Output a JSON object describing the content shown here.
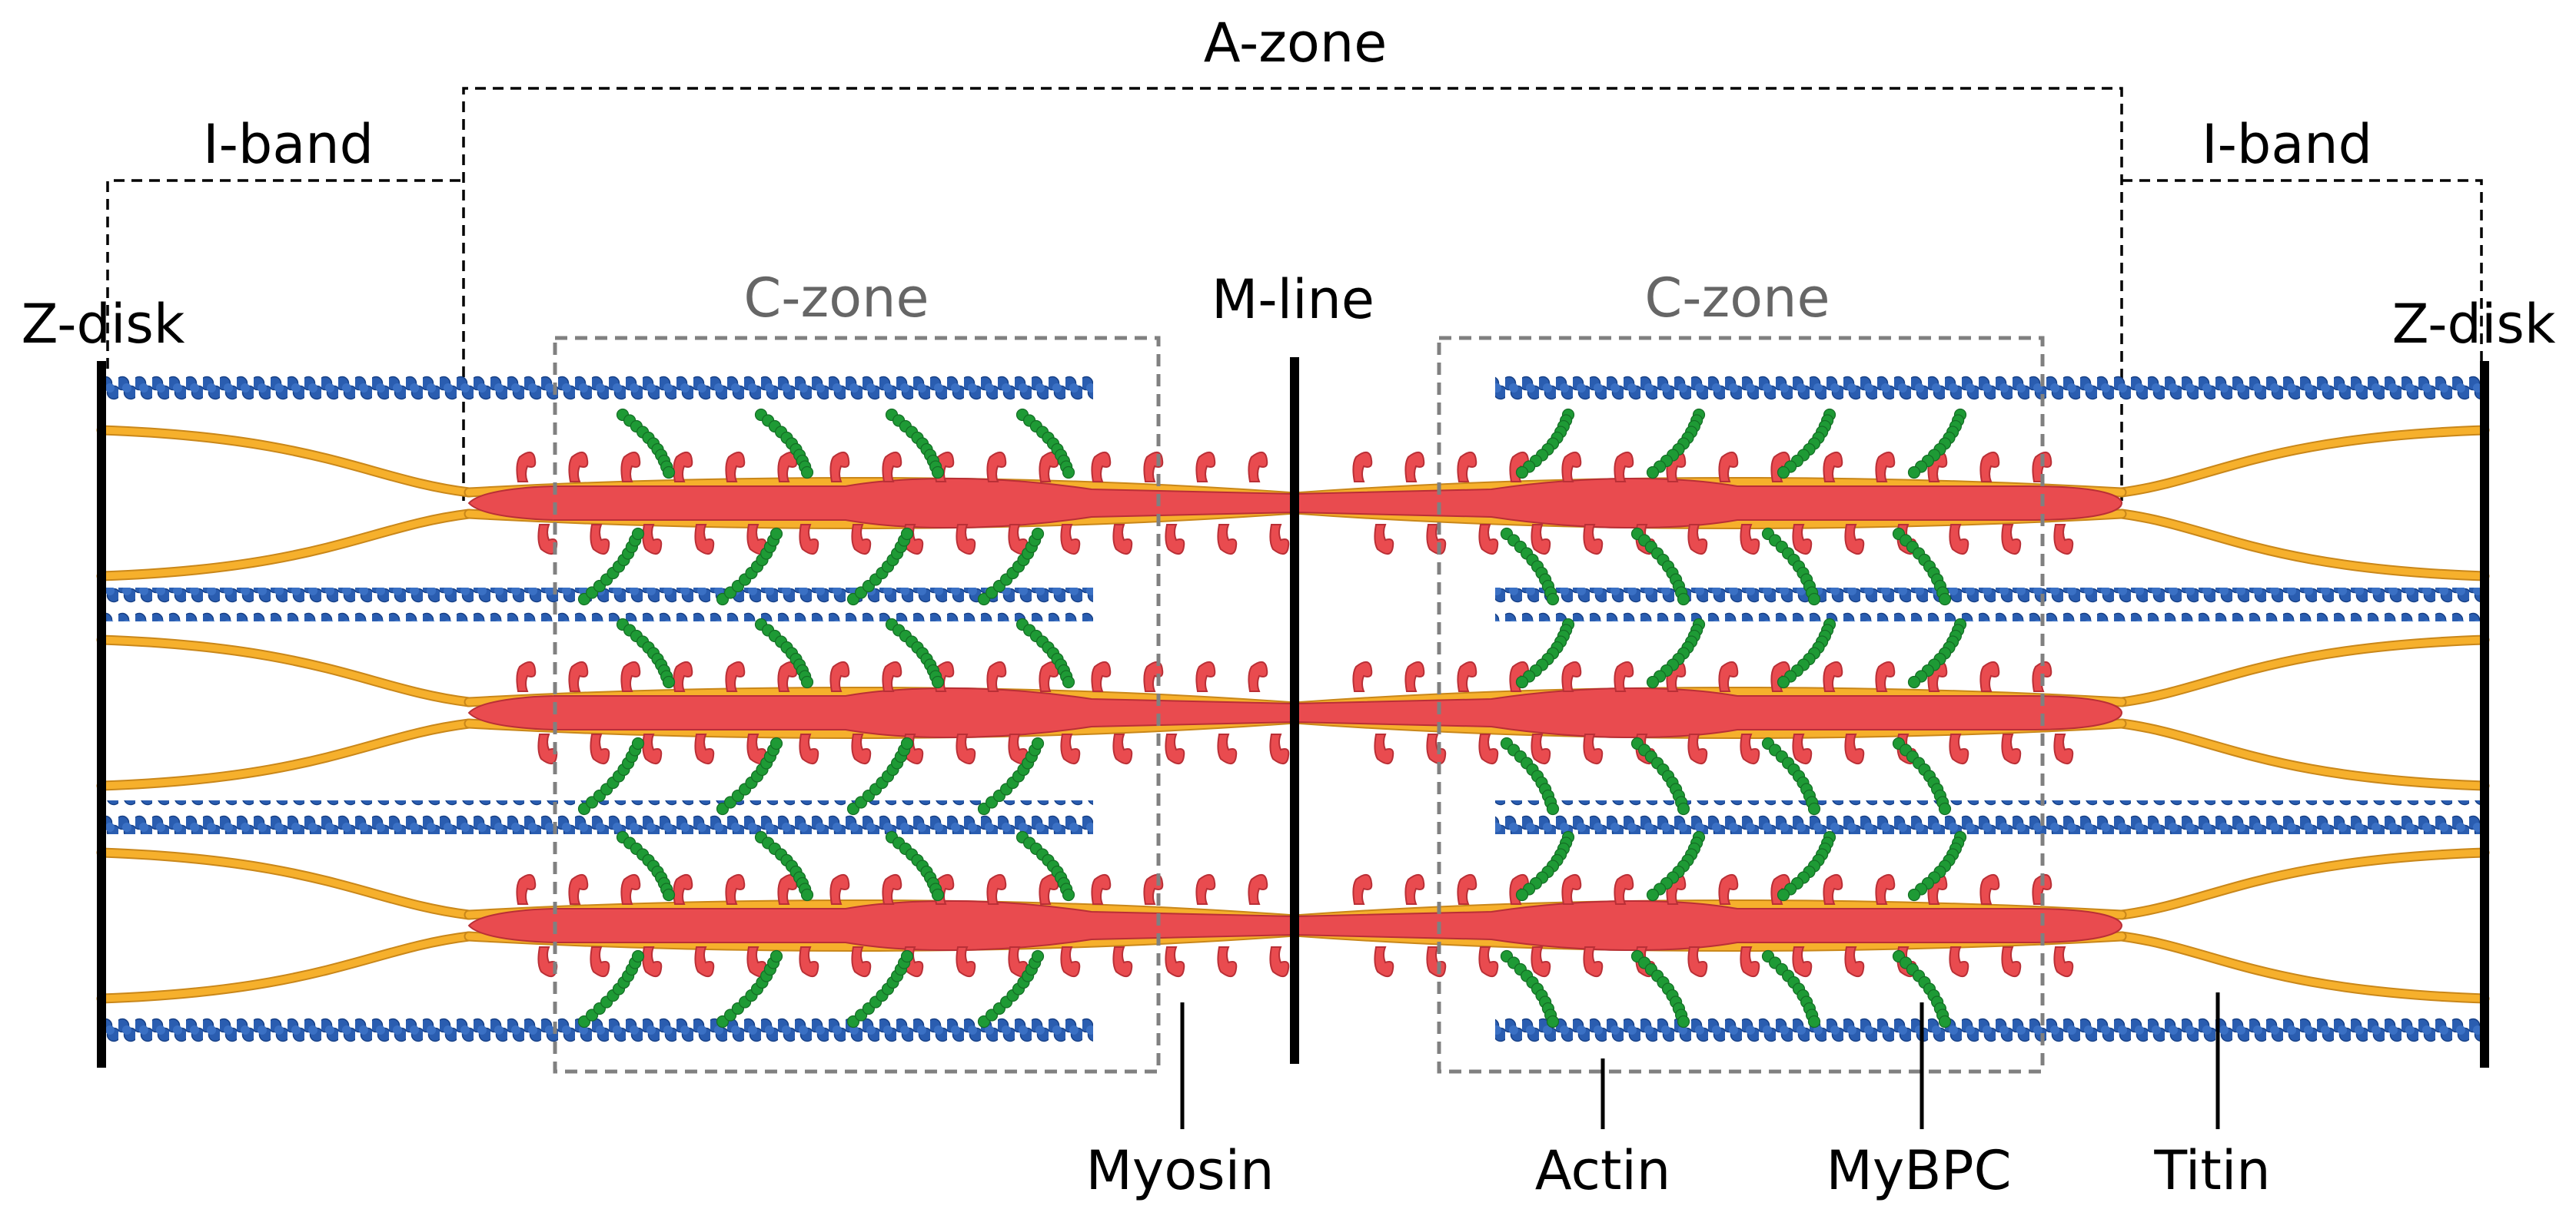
{
  "labels": {
    "a_zone": "A-zone",
    "i_band_left": "I-band",
    "i_band_right": "I-band",
    "c_zone_left": "C-zone",
    "c_zone_right": "C-zone",
    "m_line": "M-line",
    "z_disk_left": "Z-disk",
    "z_disk_right": "Z-disk",
    "myosin": "Myosin",
    "actin": "Actin",
    "mybpc": "MyBPC",
    "titin": "Titin"
  },
  "colors": {
    "actin": "#2a5db0",
    "actin_edge": "#163f85",
    "myosin": "#e94b4f",
    "myosin_edge": "#b92f36",
    "titin": "#f6b02c",
    "titin_edge": "#c9871a",
    "mybpc": "#1e9a35",
    "structure": "#000000",
    "c_zone_box": "#808080"
  }
}
